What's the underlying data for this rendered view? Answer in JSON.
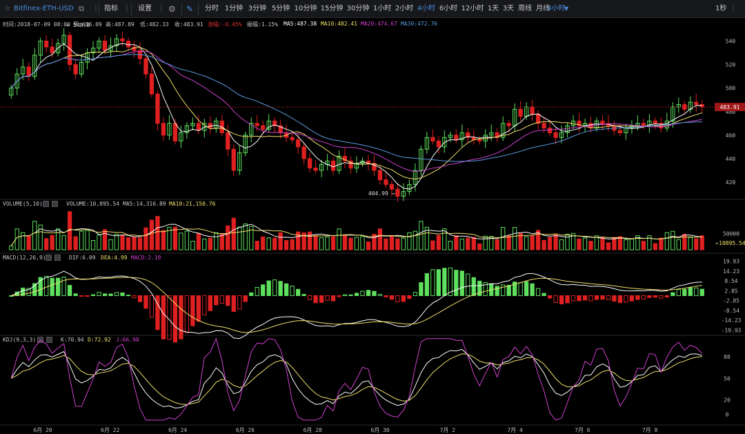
{
  "toolbar": {
    "symbol": "Bitfinex-ETH-USD",
    "indicators_label": "指标",
    "settings_label": "设置",
    "intervals": [
      "分时",
      "1分钟",
      "3分钟",
      "5分钟",
      "10分钟",
      "15分钟",
      "30分钟",
      "1小时",
      "2小时",
      "4小时",
      "6小时",
      "12小时",
      "1天",
      "3天",
      "周线",
      "月线"
    ],
    "active_interval": "4小时",
    "interval_dropdown": "4小时",
    "refresh": "1秒"
  },
  "colors": {
    "up": "#5ee05e",
    "down": "#e02020",
    "ma5": "#ffffff",
    "ma10": "#f0e06a",
    "ma20": "#d040d0",
    "ma30": "#5a9ae0",
    "accent": "#4a8fe0"
  },
  "info_bar": {
    "time": "时间:2018-07-09 08:00",
    "open": "开:486.09",
    "high": "高:487.89",
    "low": "低:482.33",
    "close": "收:483.91",
    "change": "涨幅:-0.45%",
    "amplitude": "振幅:1.15%",
    "ma5": "MA5:487.38",
    "ma10": "MA10:482.41",
    "ma20": "MA20:474.67",
    "ma30": "MA30:472.76"
  },
  "annotations": {
    "high_mark": "548.8",
    "low_mark": "404.99",
    "last_price": "483.91",
    "last_volume": "10895.54"
  },
  "volume_panel": {
    "name": "VOLUME(5,10)",
    "volume": "VOLUME:10,895.54",
    "ma5": "MA5:14,316.89",
    "ma10": "MA10:21,150.76",
    "ticks": [
      "50000"
    ]
  },
  "macd_panel": {
    "name": "MACD(12,26,9)",
    "dif": "DIF:6.09",
    "dea": "DEA:4.99",
    "macd": "MACD:2.19",
    "ticks": [
      "19.93",
      "14.23",
      "8.54",
      "2.85",
      "-2.85",
      "-8.54",
      "-14.23",
      "-19.93"
    ]
  },
  "kdj_panel": {
    "name": "KDJ(9,3,3)",
    "k": "K:70.94",
    "d": "D:72.92",
    "j": "J:66.98",
    "ticks": [
      "80",
      "50",
      "20",
      "0"
    ]
  },
  "price_axis": [
    "540",
    "520",
    "500",
    "480",
    "460",
    "440",
    "420"
  ],
  "x_axis": [
    "6月 20",
    "6月 22",
    "6月 24",
    "6月 26",
    "6月 28",
    "6月 30",
    "7月 2",
    "7月 4",
    "7月 6",
    "7月 8"
  ],
  "chart_data": {
    "type": "candlestick",
    "closes": [
      500,
      512,
      518,
      510,
      528,
      540,
      535,
      530,
      538,
      545,
      520,
      512,
      522,
      530,
      534,
      540,
      532,
      536,
      542,
      540,
      535,
      532,
      525,
      512,
      495,
      470,
      460,
      470,
      455,
      462,
      468,
      470,
      464,
      470,
      466,
      472,
      462,
      448,
      430,
      445,
      460,
      470,
      468,
      465,
      472,
      468,
      462,
      458,
      456,
      450,
      440,
      432,
      430,
      435,
      438,
      430,
      442,
      438,
      432,
      436,
      438,
      436,
      430,
      422,
      418,
      414,
      408,
      412,
      418,
      430,
      448,
      458,
      455,
      450,
      458,
      460,
      456,
      462,
      458,
      456,
      455,
      460,
      462,
      458,
      470,
      468,
      482,
      476,
      484,
      478,
      470,
      466,
      462,
      458,
      462,
      468,
      472,
      468,
      470,
      466,
      472,
      470,
      468,
      464,
      462,
      466,
      468,
      470,
      468,
      472,
      470,
      466,
      472,
      484,
      486,
      482,
      488,
      486,
      484
    ]
  }
}
